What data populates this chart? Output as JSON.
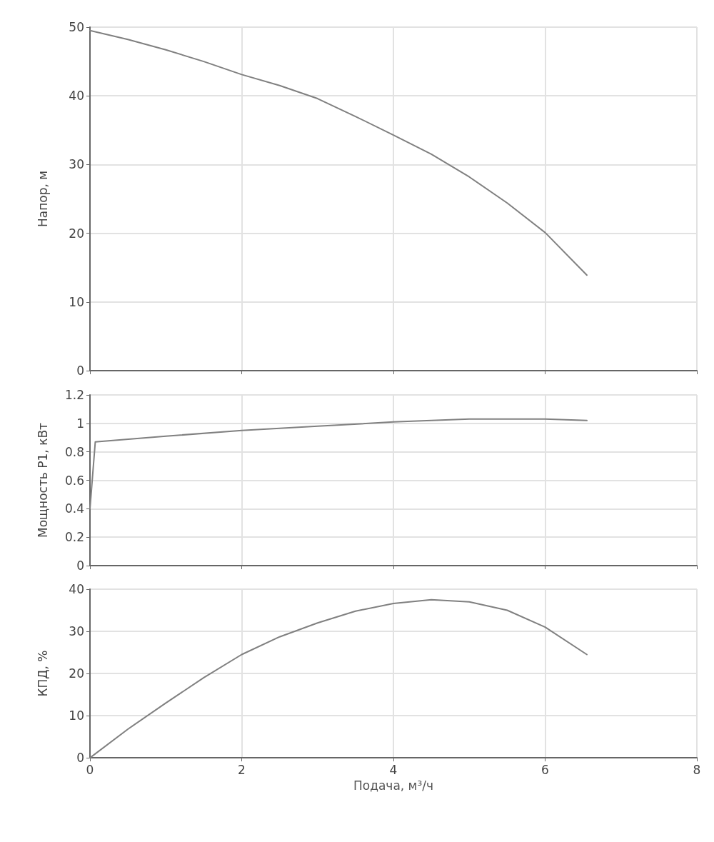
{
  "chart_data": [
    {
      "type": "line",
      "ylabel": "Напор, м",
      "x": [
        0,
        0.5,
        1,
        1.5,
        2,
        2.5,
        3,
        3.5,
        4,
        4.5,
        5,
        5.5,
        6,
        6.55
      ],
      "series": [
        {
          "color": "#808080",
          "values": [
            49.5,
            48.2,
            46.7,
            45,
            43.1,
            41.5,
            39.6,
            37,
            34.3,
            31.5,
            28.2,
            24.4,
            20.1,
            13.9
          ]
        }
      ],
      "xlim": [
        0,
        8
      ],
      "xticks": [
        0,
        2,
        4,
        6,
        8
      ],
      "ylim": [
        0,
        50
      ],
      "yticks": [
        0,
        10,
        20,
        30,
        40,
        50
      ],
      "grid": true,
      "tick_labels": "y",
      "marker": "none",
      "line_style": "solid"
    },
    {
      "type": "line",
      "ylabel": "Мощность P1, кВт",
      "x": [
        0,
        0.07,
        1,
        2,
        3,
        4,
        5,
        6,
        6.55
      ],
      "series": [
        {
          "color": "#808080",
          "values": [
            0.4,
            0.87,
            0.91,
            0.95,
            0.98,
            1.01,
            1.03,
            1.03,
            1.02
          ]
        }
      ],
      "xlim": [
        0,
        8
      ],
      "xticks": [
        0,
        2,
        4,
        6,
        8
      ],
      "ylim": [
        0,
        1.2
      ],
      "yticks": [
        0,
        0.2,
        0.4,
        0.6,
        0.8,
        1,
        1.2
      ],
      "grid": true,
      "tick_labels": "y",
      "marker": "none",
      "line_style": "solid"
    },
    {
      "type": "line",
      "xlabel": "Подача, м³/ч",
      "ylabel": "КПД, %",
      "x": [
        0,
        0.5,
        1,
        1.5,
        2,
        2.5,
        3,
        3.5,
        4,
        4.5,
        5,
        5.5,
        6,
        6.55
      ],
      "series": [
        {
          "color": "#808080",
          "values": [
            0,
            6.8,
            13,
            19,
            24.5,
            28.7,
            32,
            34.8,
            36.6,
            37.5,
            37,
            35,
            31,
            24.5
          ]
        }
      ],
      "xlim": [
        0,
        8
      ],
      "xticks": [
        0,
        2,
        4,
        6,
        8
      ],
      "ylim": [
        0,
        40
      ],
      "yticks": [
        0,
        10,
        20,
        30,
        40
      ],
      "grid": true,
      "marker": "none",
      "line_style": "solid"
    }
  ]
}
